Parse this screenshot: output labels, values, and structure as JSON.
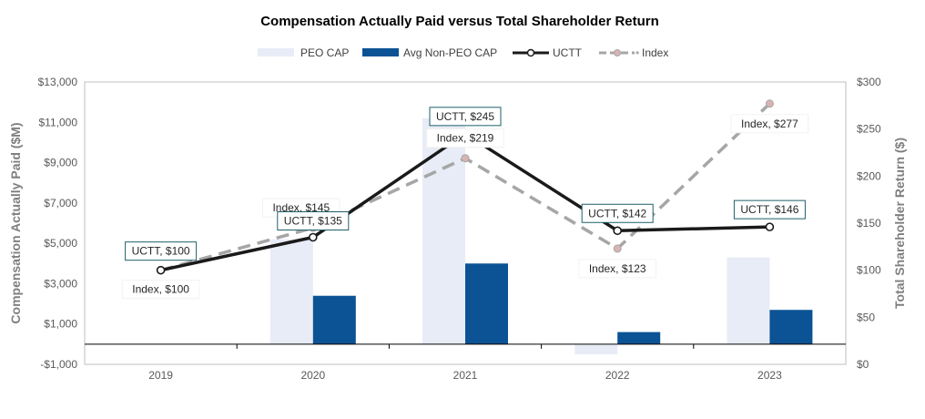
{
  "chart_data": {
    "type": "bar",
    "title": "Compensation Actually Paid versus Total Shareholder Return",
    "categories": [
      "2019",
      "2020",
      "2021",
      "2022",
      "2023"
    ],
    "y_left": {
      "label": "Compensation Actually Paid ($M)",
      "range": [
        -1000,
        13000
      ],
      "ticks": [
        -1000,
        1000,
        3000,
        5000,
        7000,
        9000,
        11000,
        13000
      ],
      "tick_labels": [
        "-$1,000",
        "$1,000",
        "$3,000",
        "$5,000",
        "$7,000",
        "$9,000",
        "$11,000",
        "$13,000"
      ]
    },
    "y_right": {
      "label": "Total Shareholder Return ($)",
      "range": [
        0,
        300
      ],
      "ticks": [
        0,
        50,
        100,
        150,
        200,
        250,
        300
      ],
      "tick_labels": [
        "$0",
        "$50",
        "$100",
        "$150",
        "$200",
        "$250",
        "$300"
      ]
    },
    "bar_series": [
      {
        "name": "PEO CAP",
        "color": "#e8ecf7",
        "values": [
          0,
          5200,
          11200,
          -500,
          4300
        ]
      },
      {
        "name": "Avg Non-PEO CAP",
        "color": "#0b5394",
        "values": [
          0,
          2400,
          4000,
          600,
          1700
        ]
      }
    ],
    "line_series": [
      {
        "name": "UCTT",
        "color": "#1a1a1a",
        "style": "solid",
        "values": [
          100,
          135,
          245,
          142,
          146
        ],
        "labels": [
          "UCTT, $100",
          "UCTT, $135",
          "UCTT, $245",
          "UCTT, $142",
          "UCTT, $146"
        ]
      },
      {
        "name": "Index",
        "legend_label": "Index",
        "color": "#a6a6a6",
        "marker_color": "#d9b3b3",
        "style": "dashed",
        "values": [
          100,
          145,
          219,
          123,
          277
        ],
        "labels": [
          "Index, $100",
          "Index, $145",
          "Index, $219",
          "Index, $123",
          "Index, $277"
        ]
      }
    ]
  }
}
